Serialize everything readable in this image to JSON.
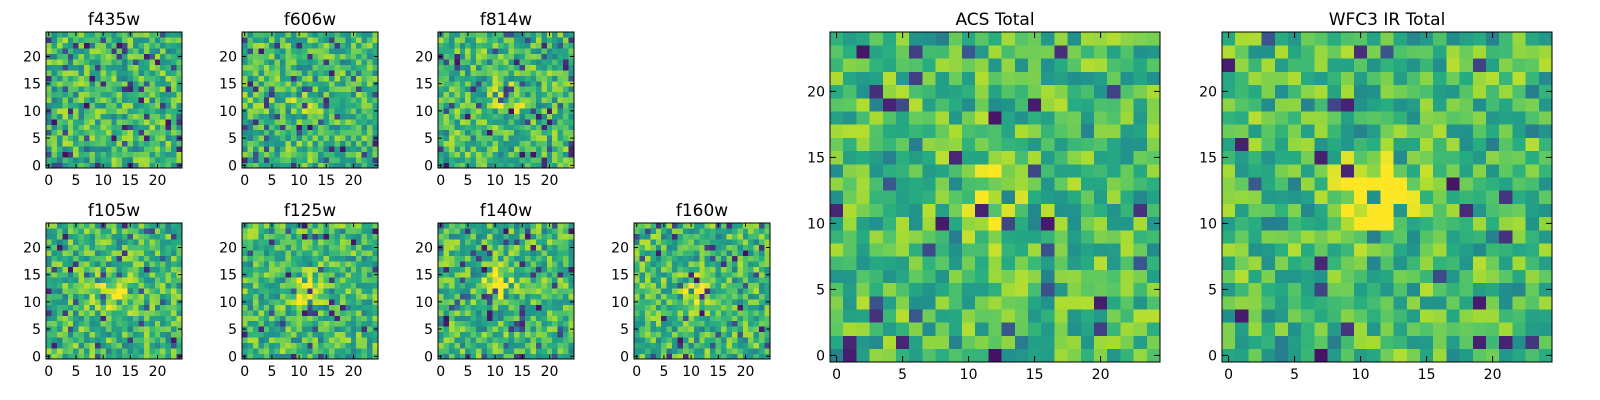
{
  "chart_data": [
    {
      "type": "heatmap",
      "title": "f435w",
      "grid_size": 25,
      "xticks": [
        "0",
        "5",
        "10",
        "15",
        "20"
      ],
      "yticks": [
        "0",
        "5",
        "10",
        "15",
        "20"
      ],
      "colormap": "viridis",
      "peak": {
        "x": 13,
        "y": 5,
        "strength": 0.05
      },
      "seed": 11,
      "dark_fraction": 0.1
    },
    {
      "type": "heatmap",
      "title": "f606w",
      "grid_size": 25,
      "xticks": [
        "0",
        "5",
        "10",
        "15",
        "20"
      ],
      "yticks": [
        "0",
        "5",
        "10",
        "15",
        "20"
      ],
      "colormap": "viridis",
      "peak": {
        "x": 11,
        "y": 11,
        "strength": 0.12
      },
      "seed": 23,
      "dark_fraction": 0.07
    },
    {
      "type": "heatmap",
      "title": "f814w",
      "grid_size": 25,
      "xticks": [
        "0",
        "5",
        "10",
        "15",
        "20"
      ],
      "yticks": [
        "0",
        "5",
        "10",
        "15",
        "20"
      ],
      "colormap": "viridis",
      "peak": {
        "x": 12,
        "y": 12,
        "strength": 0.25
      },
      "seed": 37,
      "dark_fraction": 0.07
    },
    {
      "type": "heatmap",
      "title": "f105w",
      "grid_size": 25,
      "xticks": [
        "0",
        "5",
        "10",
        "15",
        "20"
      ],
      "yticks": [
        "0",
        "5",
        "10",
        "15",
        "20"
      ],
      "colormap": "viridis",
      "peak": {
        "x": 12,
        "y": 11,
        "strength": 0.3
      },
      "seed": 41,
      "dark_fraction": 0.07
    },
    {
      "type": "heatmap",
      "title": "f125w",
      "grid_size": 25,
      "xticks": [
        "0",
        "5",
        "10",
        "15",
        "20"
      ],
      "yticks": [
        "0",
        "5",
        "10",
        "15",
        "20"
      ],
      "colormap": "viridis",
      "peak": {
        "x": 11,
        "y": 12,
        "strength": 0.28
      },
      "seed": 53,
      "dark_fraction": 0.07
    },
    {
      "type": "heatmap",
      "title": "f140w",
      "grid_size": 25,
      "xticks": [
        "0",
        "5",
        "10",
        "15",
        "20"
      ],
      "yticks": [
        "0",
        "5",
        "10",
        "15",
        "20"
      ],
      "colormap": "viridis",
      "peak": {
        "x": 11,
        "y": 13,
        "strength": 0.32
      },
      "seed": 67,
      "dark_fraction": 0.07
    },
    {
      "type": "heatmap",
      "title": "f160w",
      "grid_size": 25,
      "xticks": [
        "0",
        "5",
        "10",
        "15",
        "20"
      ],
      "yticks": [
        "0",
        "5",
        "10",
        "15",
        "20"
      ],
      "colormap": "viridis",
      "peak": {
        "x": 11,
        "y": 12,
        "strength": 0.3
      },
      "seed": 79,
      "dark_fraction": 0.07
    },
    {
      "type": "heatmap",
      "title": "ACS Total",
      "grid_size": 25,
      "xticks": [
        "0",
        "5",
        "10",
        "15",
        "20"
      ],
      "yticks": [
        "0",
        "5",
        "10",
        "15",
        "20"
      ],
      "colormap": "viridis",
      "peak": {
        "x": 12,
        "y": 12,
        "strength": 0.18
      },
      "seed": 97,
      "dark_fraction": 0.05
    },
    {
      "type": "heatmap",
      "title": "WFC3 IR Total",
      "grid_size": 25,
      "xticks": [
        "0",
        "5",
        "10",
        "15",
        "20"
      ],
      "yticks": [
        "0",
        "5",
        "10",
        "15",
        "20"
      ],
      "colormap": "viridis",
      "peak": {
        "x": 11,
        "y": 12,
        "strength": 0.45
      },
      "seed": 113,
      "dark_fraction": 0.05
    }
  ]
}
